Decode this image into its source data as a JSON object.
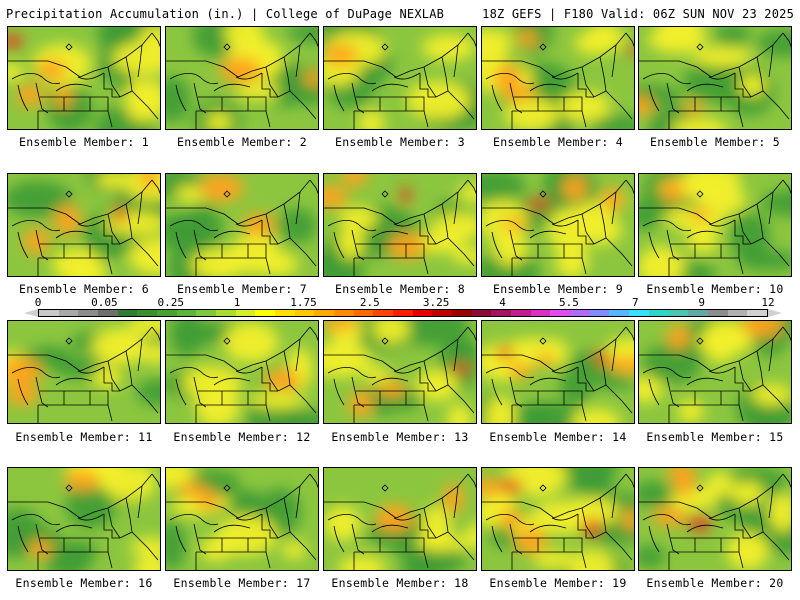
{
  "header": {
    "left_title": "Precipitation Accumulation (in.) | College of DuPage NEXLAB",
    "right_title": "18Z GEFS | F180 Valid: 06Z SUN NOV 23 2025"
  },
  "colorbar": {
    "tick_labels": [
      "0",
      "0.05",
      "0.25",
      "1",
      "1.75",
      "2.5",
      "3.25",
      "4",
      "5.5",
      "7",
      "9",
      "12"
    ],
    "colors": [
      "#c8c8c8",
      "#a8a8a8",
      "#8c8c8c",
      "#6f6f6f",
      "#2e7d32",
      "#3c8f2f",
      "#4aa132",
      "#5db43a",
      "#7ec93b",
      "#a8dc2e",
      "#d6ee2a",
      "#ffff00",
      "#ffe100",
      "#ffc800",
      "#ffa800",
      "#ff8c00",
      "#ff6a00",
      "#ff4500",
      "#ff1f00",
      "#e60000",
      "#c00000",
      "#9b0000",
      "#8b0a3a",
      "#a3135f",
      "#c11d8d",
      "#dd2fc4",
      "#e34df0",
      "#b06af5",
      "#7d8cff",
      "#56b7ff",
      "#32e2ff",
      "#2bd6c8",
      "#4bc6b0",
      "#5fa9a6",
      "#8c8c8c",
      "#b0b0b0",
      "#d0d0d0"
    ]
  },
  "members": [
    {
      "label": "Ensemble Member: 1",
      "intensity": 0.55
    },
    {
      "label": "Ensemble Member: 2",
      "intensity": 0.35
    },
    {
      "label": "Ensemble Member: 3",
      "intensity": 0.25
    },
    {
      "label": "Ensemble Member: 4",
      "intensity": 0.6
    },
    {
      "label": "Ensemble Member: 5",
      "intensity": 0.3
    },
    {
      "label": "Ensemble Member: 6",
      "intensity": 0.6
    },
    {
      "label": "Ensemble Member: 7",
      "intensity": 0.35
    },
    {
      "label": "Ensemble Member: 8",
      "intensity": 0.5
    },
    {
      "label": "Ensemble Member: 9",
      "intensity": 0.6
    },
    {
      "label": "Ensemble Member: 10",
      "intensity": 0.45
    },
    {
      "label": "Ensemble Member: 11",
      "intensity": 0.35
    },
    {
      "label": "Ensemble Member: 12",
      "intensity": 0.3
    },
    {
      "label": "Ensemble Member: 13",
      "intensity": 0.5
    },
    {
      "label": "Ensemble Member: 14",
      "intensity": 0.65
    },
    {
      "label": "Ensemble Member: 15",
      "intensity": 0.45
    },
    {
      "label": "Ensemble Member: 16",
      "intensity": 0.4
    },
    {
      "label": "Ensemble Member: 17",
      "intensity": 0.45
    },
    {
      "label": "Ensemble Member: 18",
      "intensity": 0.35
    },
    {
      "label": "Ensemble Member: 19",
      "intensity": 0.75
    },
    {
      "label": "Ensemble Member: 20",
      "intensity": 0.55
    }
  ]
}
